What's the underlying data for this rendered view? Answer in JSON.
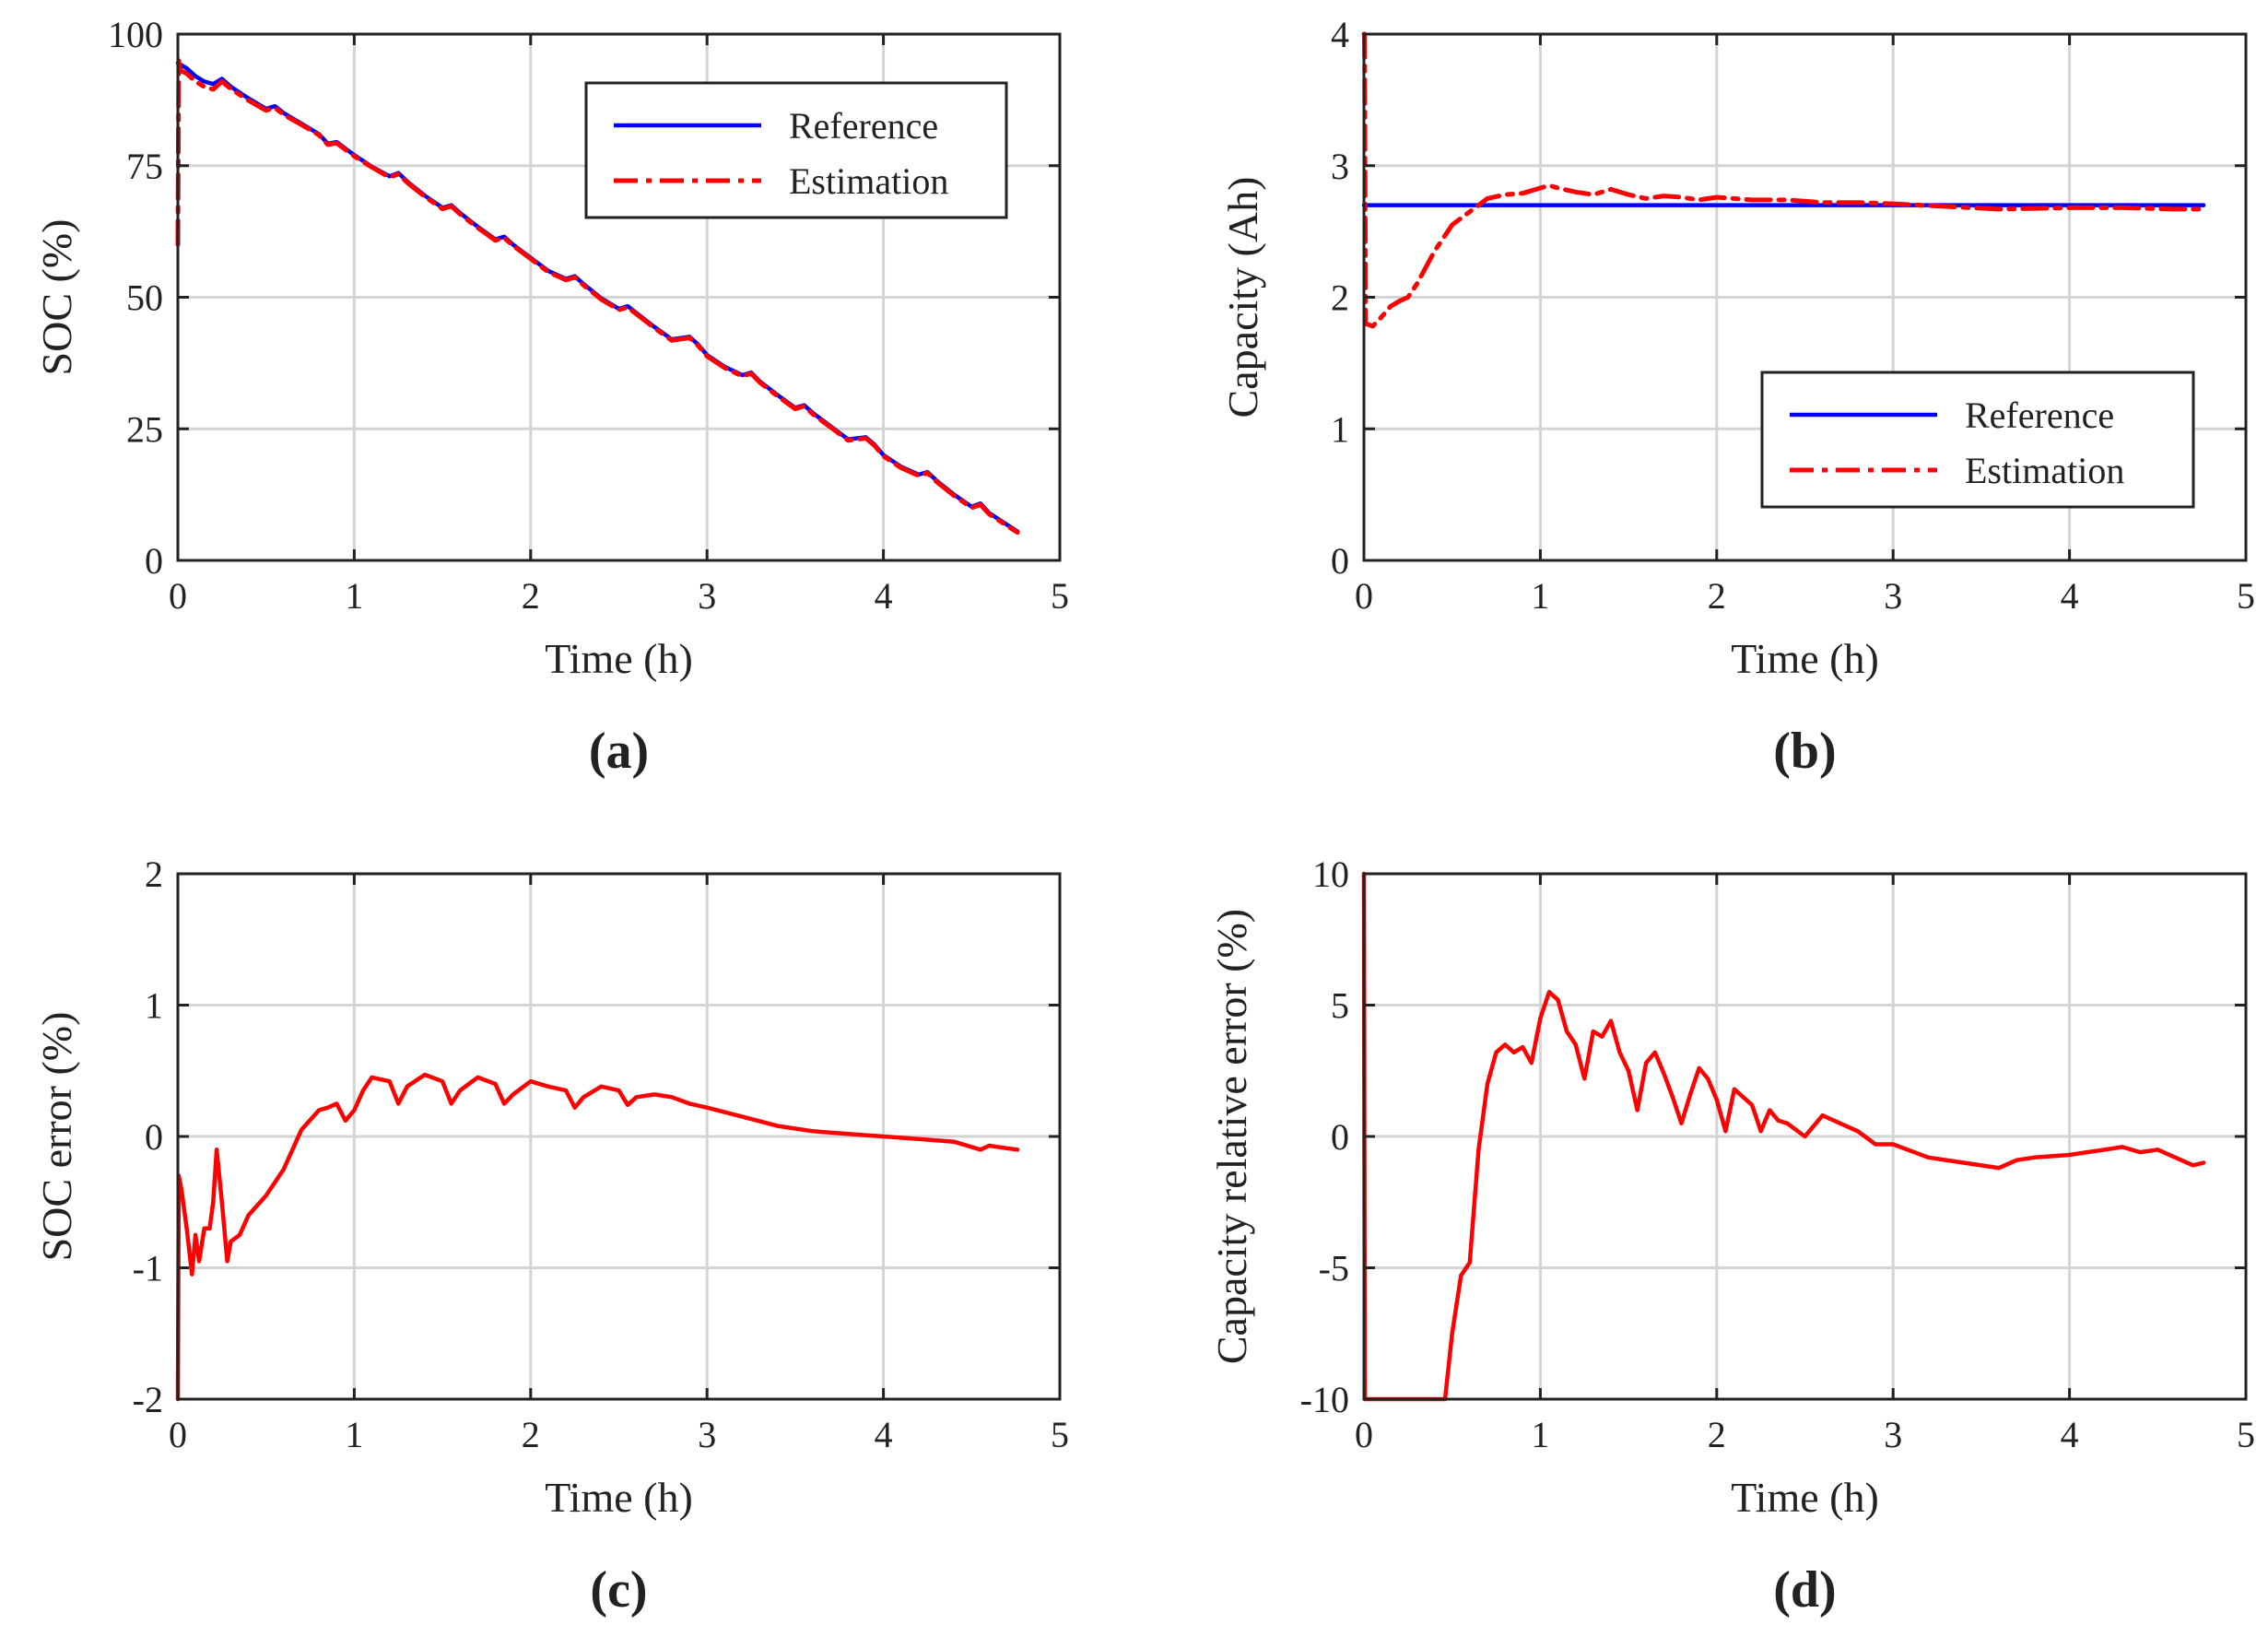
{
  "colors": {
    "reference": "#0000ff",
    "estimation": "#ff0000",
    "grid": "#d4d4d4",
    "axis": "#222222"
  },
  "chart_data": [
    {
      "panel": "(a)",
      "type": "line",
      "xlabel": "Time (h)",
      "ylabel": "SOC (%)",
      "xlim": [
        0,
        5
      ],
      "ylim": [
        0,
        100
      ],
      "xticks": [
        0,
        1,
        2,
        3,
        4,
        5
      ],
      "yticks": [
        0,
        25,
        50,
        75,
        100
      ],
      "grid": true,
      "legend_position": "top-right",
      "series": [
        {
          "name": "Reference",
          "style": "solid",
          "color": "#0000ff",
          "x": [
            0,
            0.05,
            0.1,
            0.15,
            0.2,
            0.25,
            0.3,
            0.4,
            0.5,
            0.55,
            0.6,
            0.7,
            0.8,
            0.85,
            0.9,
            1.0,
            1.1,
            1.2,
            1.25,
            1.3,
            1.4,
            1.5,
            1.55,
            1.6,
            1.7,
            1.8,
            1.85,
            1.9,
            2.0,
            2.1,
            2.2,
            2.25,
            2.3,
            2.4,
            2.5,
            2.55,
            2.6,
            2.7,
            2.8,
            2.9,
            2.95,
            3.0,
            3.1,
            3.2,
            3.25,
            3.3,
            3.4,
            3.5,
            3.55,
            3.6,
            3.7,
            3.8,
            3.9,
            3.95,
            4.0,
            4.1,
            4.2,
            4.25,
            4.3,
            4.4,
            4.5,
            4.55,
            4.6,
            4.7,
            4.76
          ],
          "y": [
            94.5,
            93.5,
            92.0,
            91.0,
            90.5,
            91.5,
            90.0,
            87.8,
            85.8,
            86.3,
            85.0,
            83.0,
            81.0,
            79.2,
            79.5,
            77.0,
            74.8,
            73.0,
            73.6,
            72.0,
            69.3,
            67.0,
            67.5,
            66.0,
            63.4,
            61.0,
            61.5,
            60.0,
            57.5,
            55.0,
            53.5,
            54.0,
            52.5,
            49.8,
            47.8,
            48.3,
            47.0,
            44.4,
            42.0,
            42.5,
            41.0,
            39.0,
            36.8,
            35.2,
            35.7,
            34.0,
            31.4,
            29.0,
            29.5,
            28.0,
            25.5,
            23.0,
            23.4,
            22.0,
            20.0,
            17.8,
            16.3,
            16.8,
            15.2,
            12.5,
            10.2,
            10.8,
            9.0,
            6.8,
            5.5
          ]
        },
        {
          "name": "Estimation",
          "style": "dashdot",
          "color": "#ff0000",
          "x": [
            0,
            0.005,
            0.01,
            0.02,
            0.05,
            0.1,
            0.15,
            0.2,
            0.25,
            0.3,
            0.4,
            0.5,
            0.55,
            0.6,
            0.7,
            0.8,
            0.85,
            0.9,
            1.0,
            1.1,
            1.2,
            1.25,
            1.3,
            1.4,
            1.5,
            1.55,
            1.6,
            1.7,
            1.8,
            1.85,
            1.9,
            2.0,
            2.1,
            2.2,
            2.25,
            2.3,
            2.4,
            2.5,
            2.55,
            2.6,
            2.7,
            2.8,
            2.9,
            2.95,
            3.0,
            3.1,
            3.2,
            3.25,
            3.3,
            3.4,
            3.5,
            3.55,
            3.6,
            3.7,
            3.8,
            3.9,
            3.95,
            4.0,
            4.1,
            4.2,
            4.25,
            4.3,
            4.4,
            4.5,
            4.55,
            4.6,
            4.7,
            4.76
          ],
          "y": [
            60.0,
            95.0,
            93.5,
            93.0,
            92.5,
            91.0,
            90.0,
            89.5,
            91.0,
            89.6,
            87.4,
            85.5,
            86.0,
            84.7,
            82.8,
            80.8,
            79.0,
            79.3,
            76.8,
            74.7,
            72.8,
            73.4,
            71.8,
            69.1,
            66.8,
            67.3,
            65.8,
            63.2,
            60.8,
            61.3,
            59.8,
            57.3,
            54.8,
            53.3,
            53.8,
            52.3,
            49.6,
            47.6,
            48.1,
            46.8,
            44.2,
            41.8,
            42.3,
            40.8,
            38.8,
            36.6,
            35.0,
            35.5,
            33.8,
            31.2,
            28.8,
            29.3,
            27.8,
            25.3,
            22.8,
            23.2,
            21.8,
            19.8,
            17.6,
            16.1,
            16.6,
            15.0,
            12.3,
            10.0,
            10.6,
            8.8,
            6.6,
            5.3
          ]
        }
      ]
    },
    {
      "panel": "(b)",
      "type": "line",
      "xlabel": "Time (h)",
      "ylabel": "Capacity (Ah)",
      "xlim": [
        0,
        5
      ],
      "ylim": [
        0,
        4
      ],
      "xticks": [
        0,
        1,
        2,
        3,
        4,
        5
      ],
      "yticks": [
        0,
        1,
        2,
        3,
        4
      ],
      "grid": true,
      "legend_position": "lower-right",
      "series": [
        {
          "name": "Reference",
          "style": "solid",
          "color": "#0000ff",
          "x": [
            0,
            4.76
          ],
          "y": [
            2.7,
            2.7
          ]
        },
        {
          "name": "Estimation",
          "style": "dashdot",
          "color": "#ff0000",
          "x": [
            0,
            0.003,
            0.01,
            0.05,
            0.1,
            0.15,
            0.2,
            0.25,
            0.3,
            0.4,
            0.5,
            0.6,
            0.7,
            0.8,
            0.9,
            1.0,
            1.05,
            1.1,
            1.2,
            1.3,
            1.4,
            1.5,
            1.6,
            1.7,
            1.8,
            1.9,
            2.0,
            2.2,
            2.4,
            2.6,
            2.8,
            3.0,
            3.3,
            3.6,
            4.0,
            4.3,
            4.6,
            4.76
          ],
          "y": [
            4.0,
            4.0,
            1.8,
            1.78,
            1.85,
            1.93,
            1.97,
            2.0,
            2.1,
            2.35,
            2.55,
            2.65,
            2.75,
            2.78,
            2.79,
            2.83,
            2.85,
            2.83,
            2.8,
            2.78,
            2.82,
            2.78,
            2.75,
            2.77,
            2.76,
            2.74,
            2.76,
            2.74,
            2.74,
            2.72,
            2.72,
            2.71,
            2.69,
            2.67,
            2.68,
            2.68,
            2.67,
            2.67
          ]
        }
      ]
    },
    {
      "panel": "(c)",
      "type": "line",
      "xlabel": "Time (h)",
      "ylabel": "SOC error (%)",
      "xlim": [
        0,
        5
      ],
      "ylim": [
        -2,
        2
      ],
      "xticks": [
        0,
        1,
        2,
        3,
        4,
        5
      ],
      "yticks": [
        -2,
        -1,
        0,
        1,
        2
      ],
      "grid": true,
      "series": [
        {
          "name": "SOC error",
          "style": "solid",
          "color": "#ff0000",
          "x": [
            0,
            0.005,
            0.02,
            0.05,
            0.08,
            0.1,
            0.12,
            0.15,
            0.18,
            0.2,
            0.22,
            0.25,
            0.28,
            0.3,
            0.35,
            0.4,
            0.5,
            0.6,
            0.7,
            0.8,
            0.85,
            0.9,
            0.95,
            1.0,
            1.05,
            1.1,
            1.2,
            1.25,
            1.3,
            1.4,
            1.5,
            1.55,
            1.6,
            1.7,
            1.8,
            1.85,
            1.9,
            2.0,
            2.1,
            2.2,
            2.25,
            2.3,
            2.4,
            2.5,
            2.55,
            2.6,
            2.7,
            2.8,
            2.9,
            3.0,
            3.2,
            3.4,
            3.6,
            3.8,
            4.0,
            4.2,
            4.4,
            4.55,
            4.6,
            4.7,
            4.76
          ],
          "y": [
            -2.0,
            -0.3,
            -0.4,
            -0.7,
            -1.05,
            -0.75,
            -0.95,
            -0.7,
            -0.7,
            -0.5,
            -0.1,
            -0.5,
            -0.95,
            -0.8,
            -0.75,
            -0.6,
            -0.45,
            -0.25,
            0.05,
            0.2,
            0.22,
            0.25,
            0.12,
            0.2,
            0.35,
            0.45,
            0.42,
            0.25,
            0.38,
            0.47,
            0.42,
            0.25,
            0.35,
            0.45,
            0.4,
            0.25,
            0.32,
            0.42,
            0.38,
            0.35,
            0.22,
            0.3,
            0.38,
            0.35,
            0.24,
            0.3,
            0.32,
            0.3,
            0.25,
            0.22,
            0.15,
            0.08,
            0.04,
            0.02,
            0.0,
            -0.02,
            -0.04,
            -0.1,
            -0.07,
            -0.09,
            -0.1
          ]
        }
      ]
    },
    {
      "panel": "(d)",
      "type": "line",
      "xlabel": "Time (h)",
      "ylabel": "Capacity relative error (%)",
      "xlim": [
        0,
        5
      ],
      "ylim": [
        -10,
        10
      ],
      "xticks": [
        0,
        1,
        2,
        3,
        4,
        5
      ],
      "yticks": [
        -10,
        -5,
        0,
        5,
        10
      ],
      "grid": true,
      "series": [
        {
          "name": "Capacity relative error",
          "style": "solid",
          "color": "#ff0000",
          "x": [
            0,
            0.005,
            0.46,
            0.5,
            0.55,
            0.6,
            0.65,
            0.7,
            0.75,
            0.8,
            0.85,
            0.9,
            0.95,
            1.0,
            1.05,
            1.1,
            1.15,
            1.2,
            1.25,
            1.3,
            1.35,
            1.4,
            1.45,
            1.5,
            1.55,
            1.6,
            1.65,
            1.7,
            1.75,
            1.8,
            1.85,
            1.9,
            1.95,
            2.0,
            2.05,
            2.1,
            2.15,
            2.2,
            2.25,
            2.3,
            2.35,
            2.4,
            2.5,
            2.6,
            2.7,
            2.8,
            2.9,
            3.0,
            3.2,
            3.4,
            3.6,
            3.7,
            3.8,
            4.0,
            4.1,
            4.2,
            4.3,
            4.4,
            4.5,
            4.6,
            4.7,
            4.76
          ],
          "y": [
            10,
            -10,
            -10,
            -7.5,
            -5.3,
            -4.8,
            -0.5,
            2.0,
            3.2,
            3.5,
            3.2,
            3.4,
            2.8,
            4.5,
            5.5,
            5.2,
            4.0,
            3.5,
            2.2,
            4.0,
            3.8,
            4.4,
            3.2,
            2.5,
            1.0,
            2.8,
            3.2,
            2.4,
            1.5,
            0.5,
            1.6,
            2.6,
            2.2,
            1.4,
            0.2,
            1.8,
            1.5,
            1.2,
            0.2,
            1.0,
            0.6,
            0.5,
            0.0,
            0.8,
            0.5,
            0.2,
            -0.3,
            -0.3,
            -0.8,
            -1.0,
            -1.2,
            -0.9,
            -0.8,
            -0.7,
            -0.6,
            -0.5,
            -0.4,
            -0.6,
            -0.5,
            -0.8,
            -1.1,
            -1.0
          ]
        }
      ]
    }
  ]
}
